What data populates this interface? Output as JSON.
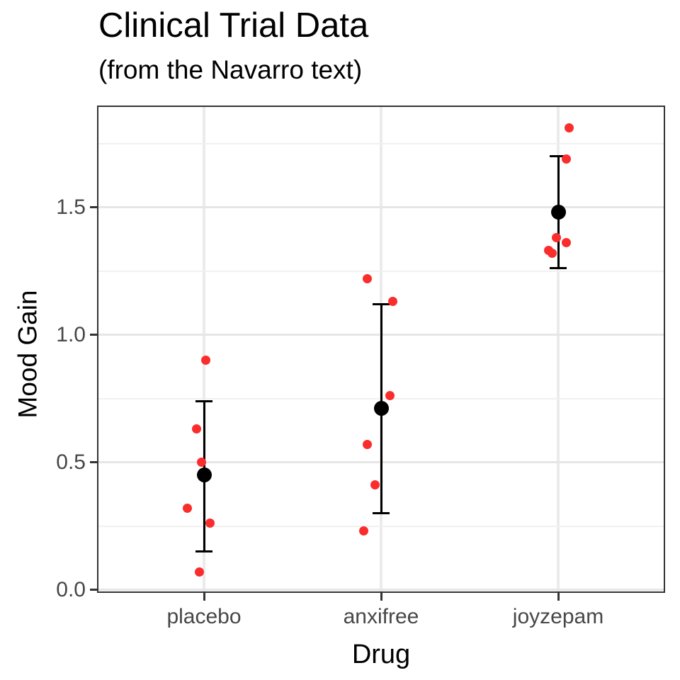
{
  "header": {
    "title": "Clinical Trial Data",
    "subtitle": "(from the Navarro text)"
  },
  "colors": {
    "point_red": "#fa2d2d",
    "summary_black": "#000000",
    "grid_major": "#e6e6e6",
    "grid_minor": "#f0f0f0",
    "panel_border": "#343434",
    "tick_label_text": "#474747",
    "title_text": "#000000"
  },
  "chart_data": {
    "type": "scatter",
    "title": "Clinical Trial Data",
    "subtitle": "(from the Navarro text)",
    "xlabel": "Drug",
    "ylabel": "Mood Gain",
    "categories": [
      "placebo",
      "anxifree",
      "joyzepam"
    ],
    "y_axis": {
      "tick_values": [
        0,
        0.5,
        1.0,
        1.5
      ],
      "tick_labels": [
        "0.0",
        "0.5",
        "1.0",
        "1.5"
      ],
      "minor_gridlines": [
        0.25,
        0.75,
        1.25,
        1.75
      ],
      "range": [
        -0.01,
        1.9
      ]
    },
    "grid": true,
    "legend": false,
    "series": [
      {
        "name": "placebo jittered observations",
        "category": "placebo",
        "points": [
          {
            "dx": 2,
            "y": 0.9
          },
          {
            "dx": -11,
            "y": 0.63
          },
          {
            "dx": -4,
            "y": 0.5
          },
          {
            "dx": -24,
            "y": 0.32
          },
          {
            "dx": 8,
            "y": 0.26
          },
          {
            "dx": -7,
            "y": 0.07
          }
        ]
      },
      {
        "name": "anxifree jittered observations",
        "category": "anxifree",
        "points": [
          {
            "dx": -20,
            "y": 1.22
          },
          {
            "dx": 16,
            "y": 1.13
          },
          {
            "dx": 12,
            "y": 0.76
          },
          {
            "dx": -20,
            "y": 0.57
          },
          {
            "dx": -9,
            "y": 0.41
          },
          {
            "dx": -25,
            "y": 0.23
          }
        ]
      },
      {
        "name": "joyzepam jittered observations",
        "category": "joyzepam",
        "points": [
          {
            "dx": 15,
            "y": 1.81
          },
          {
            "dx": 11,
            "y": 1.69
          },
          {
            "dx": -3,
            "y": 1.38
          },
          {
            "dx": 11,
            "y": 1.36
          },
          {
            "dx": -14,
            "y": 1.33
          },
          {
            "dx": -9,
            "y": 1.32
          }
        ]
      }
    ],
    "summary_stats": [
      {
        "category": "placebo",
        "mean": 0.45,
        "ci_lower": 0.15,
        "ci_upper": 0.74
      },
      {
        "category": "anxifree",
        "mean": 0.71,
        "ci_lower": 0.3,
        "ci_upper": 1.12
      },
      {
        "category": "joyzepam",
        "mean": 1.48,
        "ci_lower": 1.26,
        "ci_upper": 1.7
      }
    ]
  }
}
